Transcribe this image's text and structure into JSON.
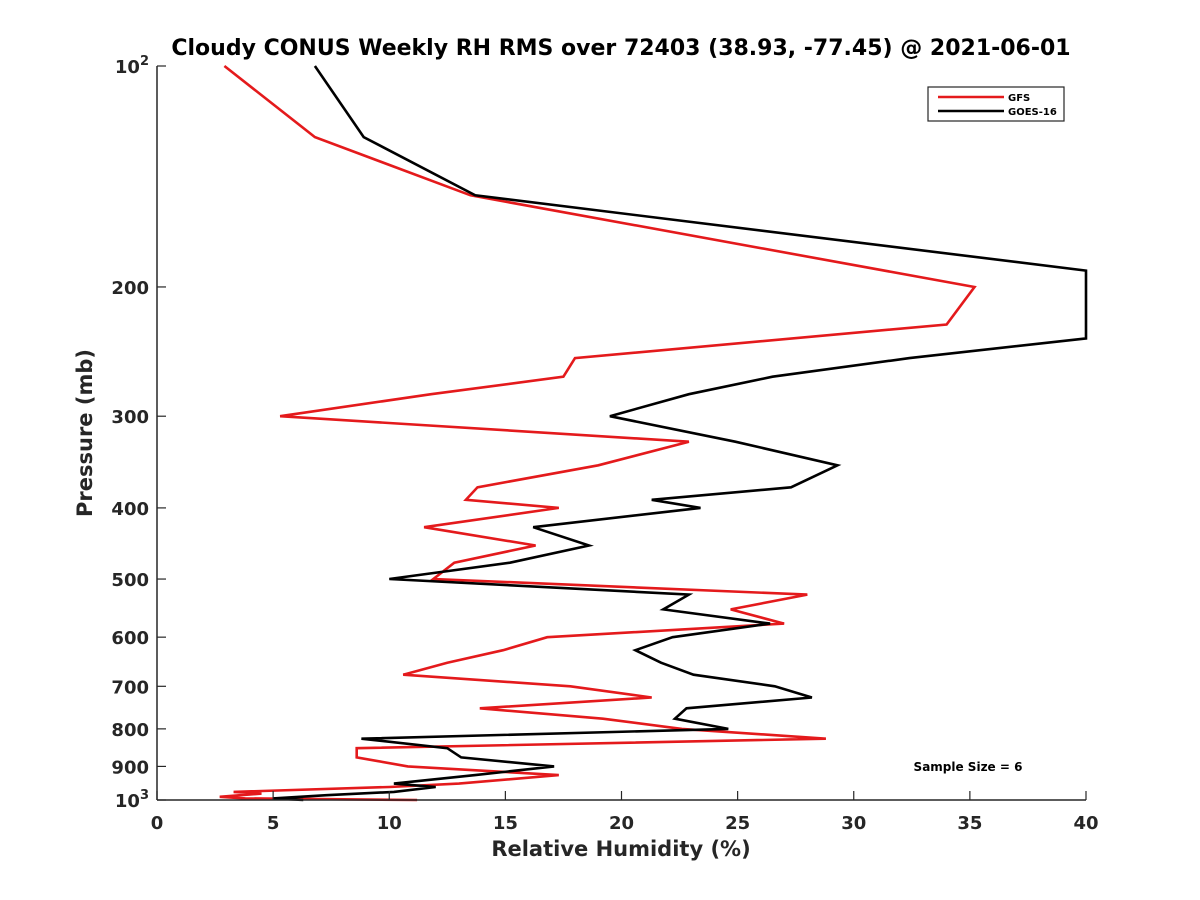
{
  "chart_data": {
    "type": "line",
    "title": "Cloudy CONUS Weekly RH RMS over 72403 (38.93, -77.45) @ 2021-06-01",
    "xlabel": "Relative Humidity (%)",
    "ylabel": "Pressure (mb)",
    "xlim": [
      0,
      40
    ],
    "ylim": [
      100,
      1000
    ],
    "y_scale": "log",
    "y_reversed": true,
    "grid": false,
    "legend_position": "top-right",
    "x_ticks": [
      "0",
      "5",
      "10",
      "15",
      "20",
      "25",
      "30",
      "35",
      "40"
    ],
    "y_ticks": [
      {
        "value": 100,
        "base": "10",
        "exp": "2"
      },
      {
        "value": 200,
        "label": "200"
      },
      {
        "value": 300,
        "label": "300"
      },
      {
        "value": 400,
        "label": "400"
      },
      {
        "value": 500,
        "label": "500"
      },
      {
        "value": 600,
        "label": "600"
      },
      {
        "value": 700,
        "label": "700"
      },
      {
        "value": 800,
        "label": "800"
      },
      {
        "value": 900,
        "label": "900"
      },
      {
        "value": 1000,
        "base": "10",
        "exp": "3"
      }
    ],
    "annotation": "Sample Size = 6",
    "series": [
      {
        "name": "GFS",
        "color": "#e41a1c",
        "points": [
          {
            "x": 2.9,
            "y": 100
          },
          {
            "x": 6.8,
            "y": 125
          },
          {
            "x": 13.5,
            "y": 150
          },
          {
            "x": 35.2,
            "y": 200
          },
          {
            "x": 34.0,
            "y": 225
          },
          {
            "x": 18.0,
            "y": 250
          },
          {
            "x": 17.5,
            "y": 265
          },
          {
            "x": 11.8,
            "y": 280
          },
          {
            "x": 5.3,
            "y": 300
          },
          {
            "x": 22.9,
            "y": 325
          },
          {
            "x": 19.0,
            "y": 350
          },
          {
            "x": 13.8,
            "y": 375
          },
          {
            "x": 13.3,
            "y": 390
          },
          {
            "x": 17.3,
            "y": 400
          },
          {
            "x": 11.5,
            "y": 425
          },
          {
            "x": 16.3,
            "y": 450
          },
          {
            "x": 12.8,
            "y": 475
          },
          {
            "x": 11.9,
            "y": 500
          },
          {
            "x": 28.0,
            "y": 525
          },
          {
            "x": 24.7,
            "y": 550
          },
          {
            "x": 27.0,
            "y": 575
          },
          {
            "x": 16.8,
            "y": 600
          },
          {
            "x": 14.9,
            "y": 625
          },
          {
            "x": 12.5,
            "y": 650
          },
          {
            "x": 10.6,
            "y": 675
          },
          {
            "x": 17.8,
            "y": 700
          },
          {
            "x": 21.3,
            "y": 725
          },
          {
            "x": 13.9,
            "y": 750
          },
          {
            "x": 19.2,
            "y": 775
          },
          {
            "x": 22.6,
            "y": 800
          },
          {
            "x": 28.8,
            "y": 825
          },
          {
            "x": 8.6,
            "y": 850
          },
          {
            "x": 8.6,
            "y": 875
          },
          {
            "x": 10.8,
            "y": 900
          },
          {
            "x": 17.3,
            "y": 925
          },
          {
            "x": 13.0,
            "y": 950
          },
          {
            "x": 10.0,
            "y": 960
          },
          {
            "x": 3.3,
            "y": 975
          },
          {
            "x": 4.5,
            "y": 980
          },
          {
            "x": 2.7,
            "y": 990
          },
          {
            "x": 3.8,
            "y": 995
          },
          {
            "x": 11.2,
            "y": 1000
          }
        ]
      },
      {
        "name": "GOES-16",
        "color": "#000000",
        "points": [
          {
            "x": 6.8,
            "y": 100
          },
          {
            "x": 8.9,
            "y": 125
          },
          {
            "x": 13.7,
            "y": 150
          },
          {
            "x": 40.0,
            "y": 190
          },
          {
            "x": 40.0,
            "y": 235
          },
          {
            "x": 32.4,
            "y": 250
          },
          {
            "x": 26.5,
            "y": 265
          },
          {
            "x": 22.9,
            "y": 280
          },
          {
            "x": 19.5,
            "y": 300
          },
          {
            "x": 24.9,
            "y": 325
          },
          {
            "x": 29.3,
            "y": 350
          },
          {
            "x": 27.3,
            "y": 375
          },
          {
            "x": 21.3,
            "y": 390
          },
          {
            "x": 23.4,
            "y": 400
          },
          {
            "x": 16.2,
            "y": 425
          },
          {
            "x": 18.6,
            "y": 450
          },
          {
            "x": 15.2,
            "y": 475
          },
          {
            "x": 10.0,
            "y": 500
          },
          {
            "x": 22.9,
            "y": 525
          },
          {
            "x": 21.8,
            "y": 550
          },
          {
            "x": 26.4,
            "y": 575
          },
          {
            "x": 22.2,
            "y": 600
          },
          {
            "x": 20.6,
            "y": 625
          },
          {
            "x": 21.7,
            "y": 650
          },
          {
            "x": 23.1,
            "y": 675
          },
          {
            "x": 26.6,
            "y": 700
          },
          {
            "x": 28.2,
            "y": 725
          },
          {
            "x": 22.8,
            "y": 750
          },
          {
            "x": 22.3,
            "y": 775
          },
          {
            "x": 24.6,
            "y": 800
          },
          {
            "x": 8.8,
            "y": 825
          },
          {
            "x": 12.5,
            "y": 850
          },
          {
            "x": 13.1,
            "y": 875
          },
          {
            "x": 17.1,
            "y": 900
          },
          {
            "x": 13.7,
            "y": 925
          },
          {
            "x": 10.2,
            "y": 950
          },
          {
            "x": 12.0,
            "y": 960
          },
          {
            "x": 10.2,
            "y": 975
          },
          {
            "x": 7.3,
            "y": 985
          },
          {
            "x": 5.0,
            "y": 995
          },
          {
            "x": 6.3,
            "y": 1000
          }
        ]
      }
    ]
  }
}
